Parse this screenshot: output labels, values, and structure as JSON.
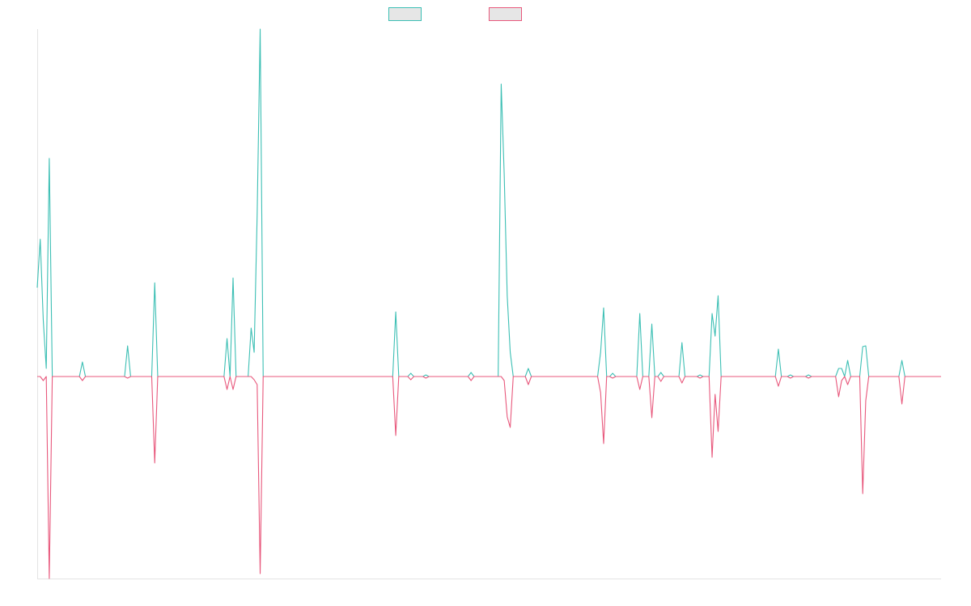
{
  "chart_data": {
    "type": "line",
    "title": "",
    "xlabel": "",
    "ylabel": "",
    "grid": false,
    "legend_position": "top-center",
    "n_points": 301,
    "ylim": [
      -250,
      430
    ],
    "series": [
      {
        "color": "#3cbfb4",
        "legend_fill": "#e6e6e6",
        "points": [
          [
            0,
            110
          ],
          [
            1,
            170
          ],
          [
            2,
            70
          ],
          [
            3,
            10
          ],
          [
            4,
            270
          ],
          [
            5,
            0
          ],
          [
            14,
            0
          ],
          [
            15,
            18
          ],
          [
            16,
            0
          ],
          [
            29,
            0
          ],
          [
            30,
            38
          ],
          [
            31,
            0
          ],
          [
            38,
            0
          ],
          [
            39,
            116
          ],
          [
            40,
            0
          ],
          [
            62,
            0
          ],
          [
            63,
            47
          ],
          [
            64,
            0
          ],
          [
            65,
            122
          ],
          [
            66,
            0
          ],
          [
            70,
            0
          ],
          [
            71,
            60
          ],
          [
            72,
            30
          ],
          [
            73,
            200
          ],
          [
            74,
            430
          ],
          [
            75,
            0
          ],
          [
            118,
            0
          ],
          [
            119,
            80
          ],
          [
            120,
            0
          ],
          [
            123,
            0
          ],
          [
            124,
            4
          ],
          [
            125,
            0
          ],
          [
            128,
            0
          ],
          [
            129,
            2
          ],
          [
            130,
            0
          ],
          [
            143,
            0
          ],
          [
            144,
            5
          ],
          [
            145,
            0
          ],
          [
            153,
            0
          ],
          [
            154,
            362
          ],
          [
            155,
            250
          ],
          [
            156,
            100
          ],
          [
            157,
            30
          ],
          [
            158,
            0
          ],
          [
            162,
            0
          ],
          [
            163,
            10
          ],
          [
            164,
            0
          ],
          [
            186,
            0
          ],
          [
            187,
            30
          ],
          [
            188,
            85
          ],
          [
            189,
            0
          ],
          [
            190,
            0
          ],
          [
            191,
            4
          ],
          [
            192,
            0
          ],
          [
            199,
            0
          ],
          [
            200,
            78
          ],
          [
            201,
            0
          ],
          [
            203,
            0
          ],
          [
            204,
            65
          ],
          [
            205,
            0
          ],
          [
            206,
            0
          ],
          [
            207,
            5
          ],
          [
            208,
            0
          ],
          [
            213,
            0
          ],
          [
            214,
            42
          ],
          [
            215,
            0
          ],
          [
            219,
            0
          ],
          [
            220,
            2
          ],
          [
            221,
            0
          ],
          [
            223,
            0
          ],
          [
            224,
            78
          ],
          [
            225,
            50
          ],
          [
            226,
            100
          ],
          [
            227,
            0
          ],
          [
            245,
            0
          ],
          [
            246,
            34
          ],
          [
            247,
            0
          ],
          [
            249,
            0
          ],
          [
            250,
            2
          ],
          [
            251,
            0
          ],
          [
            255,
            0
          ],
          [
            256,
            2
          ],
          [
            257,
            0
          ],
          [
            265,
            0
          ],
          [
            266,
            10
          ],
          [
            267,
            10
          ],
          [
            268,
            0
          ],
          [
            269,
            20
          ],
          [
            270,
            0
          ],
          [
            273,
            0
          ],
          [
            274,
            37
          ],
          [
            275,
            38
          ],
          [
            276,
            0
          ],
          [
            286,
            0
          ],
          [
            287,
            20
          ],
          [
            288,
            0
          ],
          [
            300,
            0
          ]
        ]
      },
      {
        "color": "#e8587c",
        "legend_fill": "#e6e6e6",
        "points": [
          [
            0,
            0
          ],
          [
            1,
            0
          ],
          [
            2,
            -5
          ],
          [
            3,
            0
          ],
          [
            4,
            -250
          ],
          [
            5,
            0
          ],
          [
            14,
            0
          ],
          [
            15,
            -5
          ],
          [
            16,
            0
          ],
          [
            29,
            0
          ],
          [
            30,
            -2
          ],
          [
            31,
            0
          ],
          [
            38,
            0
          ],
          [
            39,
            -107
          ],
          [
            40,
            0
          ],
          [
            62,
            0
          ],
          [
            63,
            -16
          ],
          [
            64,
            0
          ],
          [
            65,
            -16
          ],
          [
            66,
            0
          ],
          [
            71,
            0
          ],
          [
            72,
            -4
          ],
          [
            73,
            -10
          ],
          [
            74,
            -244
          ],
          [
            75,
            0
          ],
          [
            118,
            0
          ],
          [
            119,
            -73
          ],
          [
            120,
            0
          ],
          [
            123,
            0
          ],
          [
            124,
            -4
          ],
          [
            125,
            0
          ],
          [
            128,
            0
          ],
          [
            129,
            -2
          ],
          [
            130,
            0
          ],
          [
            143,
            0
          ],
          [
            144,
            -5
          ],
          [
            145,
            0
          ],
          [
            153,
            0
          ],
          [
            154,
            0
          ],
          [
            155,
            -5
          ],
          [
            156,
            -50
          ],
          [
            157,
            -63
          ],
          [
            158,
            0
          ],
          [
            162,
            0
          ],
          [
            163,
            -10
          ],
          [
            164,
            0
          ],
          [
            186,
            0
          ],
          [
            187,
            -20
          ],
          [
            188,
            -83
          ],
          [
            189,
            0
          ],
          [
            190,
            0
          ],
          [
            191,
            -2
          ],
          [
            192,
            0
          ],
          [
            199,
            0
          ],
          [
            200,
            -16
          ],
          [
            201,
            0
          ],
          [
            203,
            0
          ],
          [
            204,
            -51
          ],
          [
            205,
            0
          ],
          [
            206,
            0
          ],
          [
            207,
            -6
          ],
          [
            208,
            0
          ],
          [
            213,
            0
          ],
          [
            214,
            -8
          ],
          [
            215,
            0
          ],
          [
            219,
            0
          ],
          [
            220,
            -2
          ],
          [
            221,
            0
          ],
          [
            223,
            0
          ],
          [
            224,
            -100
          ],
          [
            225,
            -22
          ],
          [
            226,
            -68
          ],
          [
            227,
            0
          ],
          [
            245,
            0
          ],
          [
            246,
            -12
          ],
          [
            247,
            0
          ],
          [
            249,
            0
          ],
          [
            250,
            -2
          ],
          [
            251,
            0
          ],
          [
            255,
            0
          ],
          [
            256,
            -2
          ],
          [
            257,
            0
          ],
          [
            265,
            0
          ],
          [
            266,
            -25
          ],
          [
            267,
            -5
          ],
          [
            268,
            0
          ],
          [
            269,
            -10
          ],
          [
            270,
            0
          ],
          [
            273,
            0
          ],
          [
            274,
            -145
          ],
          [
            275,
            -30
          ],
          [
            276,
            0
          ],
          [
            286,
            0
          ],
          [
            287,
            -34
          ],
          [
            288,
            0
          ],
          [
            300,
            0
          ]
        ]
      }
    ]
  }
}
